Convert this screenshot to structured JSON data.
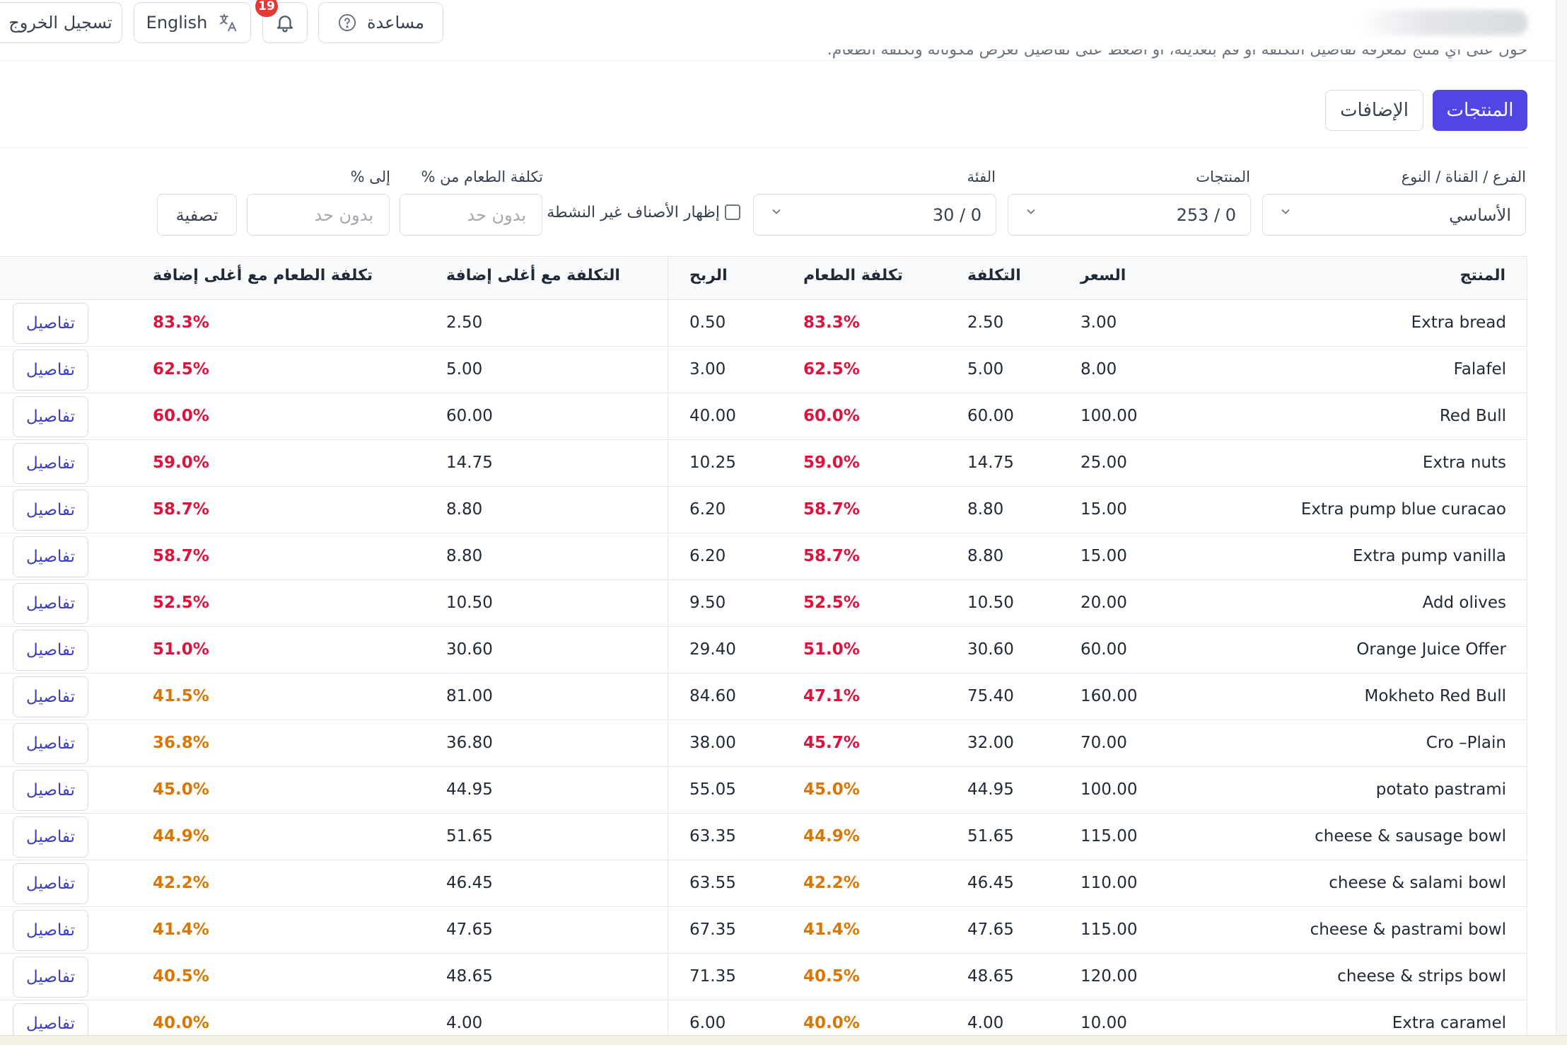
{
  "topbar": {
    "logout_label": "تسجيل الخروج",
    "language_label": "English",
    "notification_count": "19",
    "help_label": "مساعدة"
  },
  "page": {
    "subtitle": "حوّل على أي منتج لمعرفة تفاصيل التكلفة أو قم بتعديله، أو اضغط على تفاصيل لعرض مكوناته وتكلفة الطعام."
  },
  "tabs": [
    {
      "label": "المنتجات",
      "active": true
    },
    {
      "label": "الإضافات",
      "active": false
    }
  ],
  "filters": {
    "branch_label": "الفرع / القناة / النوع",
    "branch_value": "الأساسي",
    "products_label": "المنتجات",
    "products_value": "0 / 253",
    "category_label": "الفئة",
    "category_value": "0 / 30",
    "show_inactive_label": "إظهار الأصناف غير النشطة",
    "food_cost_from_label": "تكلفة الطعام من %",
    "food_cost_from_placeholder": "بدون حد",
    "to_label": "إلى %",
    "to_placeholder": "بدون حد",
    "filter_button": "تصفية"
  },
  "table": {
    "headers": {
      "product": "المنتج",
      "price": "السعر",
      "cost": "التكلفة",
      "food_cost": "تكلفة الطعام",
      "profit": "الربح",
      "cost_max_addon": "التكلفة مع أغلى إضافة",
      "food_cost_max_addon": "تكلفة الطعام مع أغلى إضافة"
    },
    "details_label": "تفاصيل",
    "rows": [
      {
        "product": "Extra bread",
        "price": "3.00",
        "cost": "2.50",
        "food_cost": "83.3%",
        "fc_level": "red",
        "profit": "0.50",
        "cost_max": "2.50",
        "fc_max": "83.3%",
        "fcm_level": "red"
      },
      {
        "product": "Falafel",
        "price": "8.00",
        "cost": "5.00",
        "food_cost": "62.5%",
        "fc_level": "red",
        "profit": "3.00",
        "cost_max": "5.00",
        "fc_max": "62.5%",
        "fcm_level": "red"
      },
      {
        "product": "Red Bull",
        "price": "100.00",
        "cost": "60.00",
        "food_cost": "60.0%",
        "fc_level": "red",
        "profit": "40.00",
        "cost_max": "60.00",
        "fc_max": "60.0%",
        "fcm_level": "red"
      },
      {
        "product": "Extra nuts",
        "price": "25.00",
        "cost": "14.75",
        "food_cost": "59.0%",
        "fc_level": "red",
        "profit": "10.25",
        "cost_max": "14.75",
        "fc_max": "59.0%",
        "fcm_level": "red"
      },
      {
        "product": "Extra pump blue curacao",
        "price": "15.00",
        "cost": "8.80",
        "food_cost": "58.7%",
        "fc_level": "red",
        "profit": "6.20",
        "cost_max": "8.80",
        "fc_max": "58.7%",
        "fcm_level": "red"
      },
      {
        "product": "Extra pump vanilla",
        "price": "15.00",
        "cost": "8.80",
        "food_cost": "58.7%",
        "fc_level": "red",
        "profit": "6.20",
        "cost_max": "8.80",
        "fc_max": "58.7%",
        "fcm_level": "red"
      },
      {
        "product": "Add olives",
        "price": "20.00",
        "cost": "10.50",
        "food_cost": "52.5%",
        "fc_level": "red",
        "profit": "9.50",
        "cost_max": "10.50",
        "fc_max": "52.5%",
        "fcm_level": "red"
      },
      {
        "product": "Orange Juice Offer",
        "price": "60.00",
        "cost": "30.60",
        "food_cost": "51.0%",
        "fc_level": "red",
        "profit": "29.40",
        "cost_max": "30.60",
        "fc_max": "51.0%",
        "fcm_level": "red"
      },
      {
        "product": "Mokheto Red Bull",
        "price": "160.00",
        "cost": "75.40",
        "food_cost": "47.1%",
        "fc_level": "red",
        "profit": "84.60",
        "cost_max": "81.00",
        "fc_max": "41.5%",
        "fcm_level": "orange"
      },
      {
        "product": "Cro –Plain",
        "price": "70.00",
        "cost": "32.00",
        "food_cost": "45.7%",
        "fc_level": "red",
        "profit": "38.00",
        "cost_max": "36.80",
        "fc_max": "36.8%",
        "fcm_level": "orange"
      },
      {
        "product": "potato pastrami",
        "price": "100.00",
        "cost": "44.95",
        "food_cost": "45.0%",
        "fc_level": "orange",
        "profit": "55.05",
        "cost_max": "44.95",
        "fc_max": "45.0%",
        "fcm_level": "orange"
      },
      {
        "product": "cheese & sausage bowl",
        "price": "115.00",
        "cost": "51.65",
        "food_cost": "44.9%",
        "fc_level": "orange",
        "profit": "63.35",
        "cost_max": "51.65",
        "fc_max": "44.9%",
        "fcm_level": "orange"
      },
      {
        "product": "cheese & salami bowl",
        "price": "110.00",
        "cost": "46.45",
        "food_cost": "42.2%",
        "fc_level": "orange",
        "profit": "63.55",
        "cost_max": "46.45",
        "fc_max": "42.2%",
        "fcm_level": "orange"
      },
      {
        "product": "cheese & pastrami bowl",
        "price": "115.00",
        "cost": "47.65",
        "food_cost": "41.4%",
        "fc_level": "orange",
        "profit": "67.35",
        "cost_max": "47.65",
        "fc_max": "41.4%",
        "fcm_level": "orange"
      },
      {
        "product": "cheese & strips bowl",
        "price": "120.00",
        "cost": "48.65",
        "food_cost": "40.5%",
        "fc_level": "orange",
        "profit": "71.35",
        "cost_max": "48.65",
        "fc_max": "40.5%",
        "fcm_level": "orange"
      },
      {
        "product": "Extra caramel",
        "price": "10.00",
        "cost": "4.00",
        "food_cost": "40.0%",
        "fc_level": "orange",
        "profit": "6.00",
        "cost_max": "4.00",
        "fc_max": "40.0%",
        "fcm_level": "orange"
      }
    ]
  },
  "colors": {
    "accent": "#4f46e5",
    "high_cost": "#dc143c",
    "medium_cost": "#d97706"
  }
}
